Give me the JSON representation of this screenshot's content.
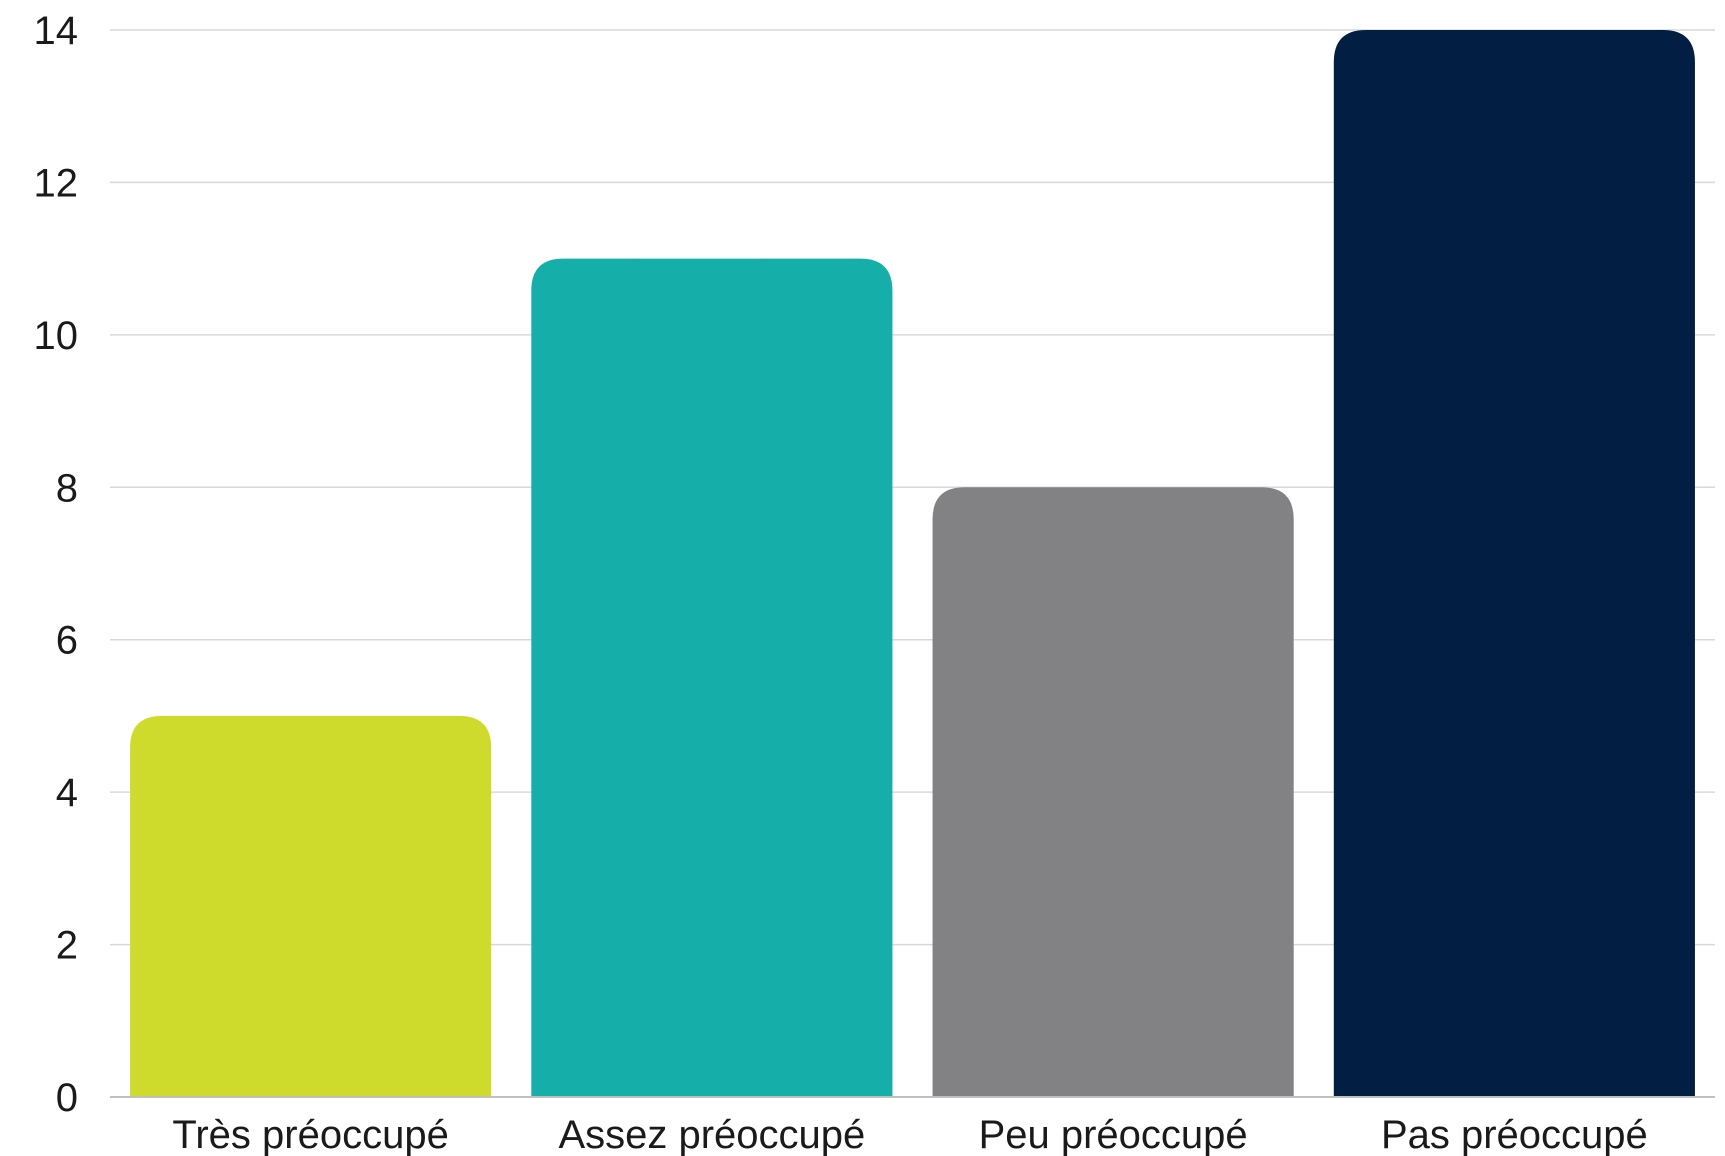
{
  "chart_data": {
    "type": "bar",
    "categories": [
      "Très préoccupé",
      "Assez préoccupé",
      "Peu préoccupé",
      "Pas préoccupé"
    ],
    "values": [
      5,
      11,
      8,
      14
    ],
    "colors": [
      "#cfdb2c",
      "#15aea9",
      "#828284",
      "#021e43"
    ],
    "title": "",
    "xlabel": "",
    "ylabel": "",
    "ylim": [
      0,
      14
    ],
    "yticks": [
      "0",
      "2",
      "4",
      "6",
      "8",
      "10",
      "12",
      "14"
    ],
    "grid": true,
    "legend": "none"
  }
}
